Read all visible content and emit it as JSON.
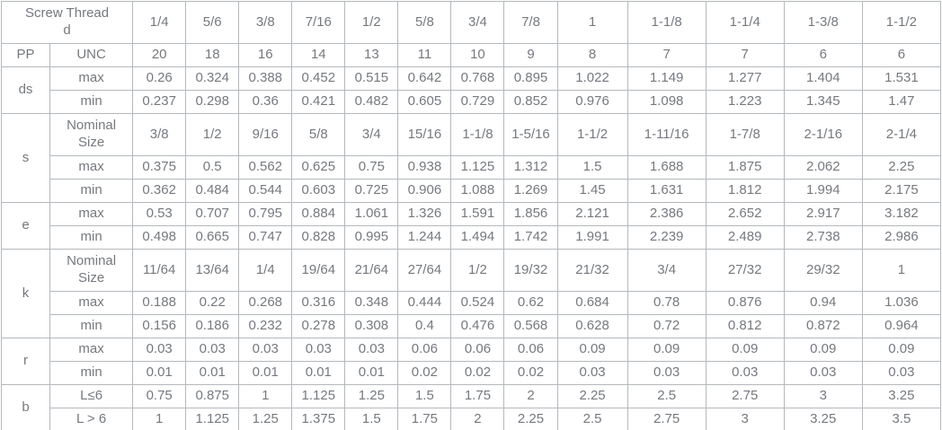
{
  "colors": {
    "text": "#75797e",
    "border": "#b4b9bd",
    "background": "#ffffff"
  },
  "table": {
    "corner_header": {
      "lines": [
        "Screw Thread",
        "d"
      ]
    },
    "columns": [
      "1/4",
      "5/6",
      "3/8",
      "7/16",
      "1/2",
      "5/8",
      "3/4",
      "7/8",
      "1",
      "1-1/8",
      "1-1/4",
      "1-3/8",
      "1-1/2"
    ],
    "sections": [
      {
        "name": "PP",
        "rows": [
          {
            "label": "UNC",
            "values": [
              "20",
              "18",
              "16",
              "14",
              "13",
              "11",
              "10",
              "9",
              "8",
              "7",
              "7",
              "6",
              "6"
            ]
          }
        ]
      },
      {
        "name": "ds",
        "rows": [
          {
            "label": "max",
            "values": [
              "0.26",
              "0.324",
              "0.388",
              "0.452",
              "0.515",
              "0.642",
              "0.768",
              "0.895",
              "1.022",
              "1.149",
              "1.277",
              "1.404",
              "1.531"
            ]
          },
          {
            "label": "min",
            "values": [
              "0.237",
              "0.298",
              "0.36",
              "0.421",
              "0.482",
              "0.605",
              "0.729",
              "0.852",
              "0.976",
              "1.098",
              "1.223",
              "1.345",
              "1.47"
            ]
          }
        ]
      },
      {
        "name": "s",
        "rows": [
          {
            "label": "Nominal Size",
            "values": [
              "3/8",
              "1/2",
              "9/16",
              "5/8",
              "3/4",
              "15/16",
              "1-1/8",
              "1-5/16",
              "1-1/2",
              "1-11/16",
              "1-7/8",
              "2-1/16",
              "2-1/4"
            ]
          },
          {
            "label": "max",
            "values": [
              "0.375",
              "0.5",
              "0.562",
              "0.625",
              "0.75",
              "0.938",
              "1.125",
              "1.312",
              "1.5",
              "1.688",
              "1.875",
              "2.062",
              "2.25"
            ]
          },
          {
            "label": "min",
            "values": [
              "0.362",
              "0.484",
              "0.544",
              "0.603",
              "0.725",
              "0.906",
              "1.088",
              "1.269",
              "1.45",
              "1.631",
              "1.812",
              "1.994",
              "2.175"
            ]
          }
        ]
      },
      {
        "name": "e",
        "rows": [
          {
            "label": "max",
            "values": [
              "0.53",
              "0.707",
              "0.795",
              "0.884",
              "1.061",
              "1.326",
              "1.591",
              "1.856",
              "2.121",
              "2.386",
              "2.652",
              "2.917",
              "3.182"
            ]
          },
          {
            "label": "min",
            "values": [
              "0.498",
              "0.665",
              "0.747",
              "0.828",
              "0.995",
              "1.244",
              "1.494",
              "1.742",
              "1.991",
              "2.239",
              "2.489",
              "2.738",
              "2.986"
            ]
          }
        ]
      },
      {
        "name": "k",
        "rows": [
          {
            "label": "Nominal Size",
            "values": [
              "11/64",
              "13/64",
              "1/4",
              "19/64",
              "21/64",
              "27/64",
              "1/2",
              "19/32",
              "21/32",
              "3/4",
              "27/32",
              "29/32",
              "1"
            ]
          },
          {
            "label": "max",
            "values": [
              "0.188",
              "0.22",
              "0.268",
              "0.316",
              "0.348",
              "0.444",
              "0.524",
              "0.62",
              "0.684",
              "0.78",
              "0.876",
              "0.94",
              "1.036"
            ]
          },
          {
            "label": "min",
            "values": [
              "0.156",
              "0.186",
              "0.232",
              "0.278",
              "0.308",
              "0.4",
              "0.476",
              "0.568",
              "0.628",
              "0.72",
              "0.812",
              "0.872",
              "0.964"
            ]
          }
        ]
      },
      {
        "name": "r",
        "rows": [
          {
            "label": "max",
            "values": [
              "0.03",
              "0.03",
              "0.03",
              "0.03",
              "0.03",
              "0.06",
              "0.06",
              "0.06",
              "0.09",
              "0.09",
              "0.09",
              "0.09",
              "0.09"
            ]
          },
          {
            "label": "min",
            "values": [
              "0.01",
              "0.01",
              "0.01",
              "0.01",
              "0.01",
              "0.02",
              "0.02",
              "0.02",
              "0.03",
              "0.03",
              "0.03",
              "0.03",
              "0.03"
            ]
          }
        ]
      },
      {
        "name": "b",
        "rows": [
          {
            "label": "L≤6",
            "values": [
              "0.75",
              "0.875",
              "1",
              "1.125",
              "1.25",
              "1.5",
              "1.75",
              "2",
              "2.25",
              "2.5",
              "2.75",
              "3",
              "3.25"
            ]
          },
          {
            "label": "L > 6",
            "values": [
              "1",
              "1.125",
              "1.25",
              "1.375",
              "1.5",
              "1.75",
              "2",
              "2.25",
              "2.5",
              "2.75",
              "3",
              "3.25",
              "3.5"
            ]
          }
        ]
      }
    ]
  }
}
